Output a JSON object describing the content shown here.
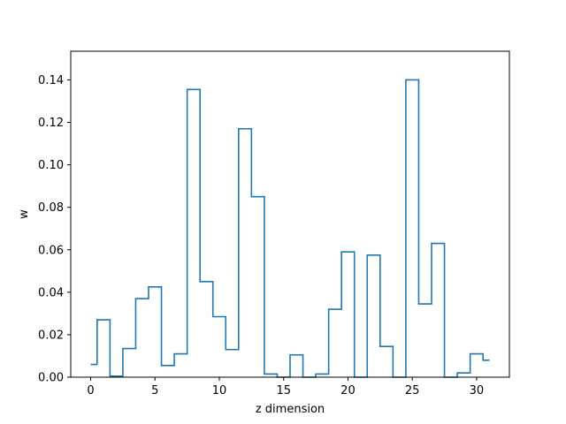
{
  "chart_data": {
    "type": "line",
    "step": "mid",
    "title": "",
    "xlabel": "z dimension",
    "ylabel": "w",
    "xlim": [
      -1.55,
      32.55
    ],
    "ylim": [
      0,
      0.1535
    ],
    "xticks": [
      0,
      5,
      10,
      15,
      20,
      25,
      30
    ],
    "xtick_labels": [
      "0",
      "5",
      "10",
      "15",
      "20",
      "25",
      "30"
    ],
    "yticks": [
      0.0,
      0.02,
      0.04,
      0.06,
      0.08,
      0.1,
      0.12,
      0.14
    ],
    "ytick_labels": [
      "0.00",
      "0.02",
      "0.04",
      "0.06",
      "0.08",
      "0.10",
      "0.12",
      "0.14"
    ],
    "grid": false,
    "series": [
      {
        "color": "#1f77b4",
        "x": [
          0,
          1,
          2,
          3,
          4,
          5,
          6,
          7,
          8,
          9,
          10,
          11,
          12,
          13,
          14,
          15,
          16,
          17,
          18,
          19,
          20,
          21,
          22,
          23,
          24,
          25,
          26,
          27,
          28,
          29,
          30,
          31
        ],
        "values": [
          0.006,
          0.027,
          0.0005,
          0.0135,
          0.037,
          0.0425,
          0.0055,
          0.011,
          0.1355,
          0.045,
          0.0285,
          0.013,
          0.117,
          0.085,
          0.0015,
          0.0,
          0.0105,
          0.0,
          0.0015,
          0.032,
          0.059,
          0.0,
          0.0575,
          0.0145,
          0.0,
          0.14,
          0.0345,
          0.063,
          0.0,
          0.002,
          0.011,
          0.008
        ]
      }
    ]
  }
}
